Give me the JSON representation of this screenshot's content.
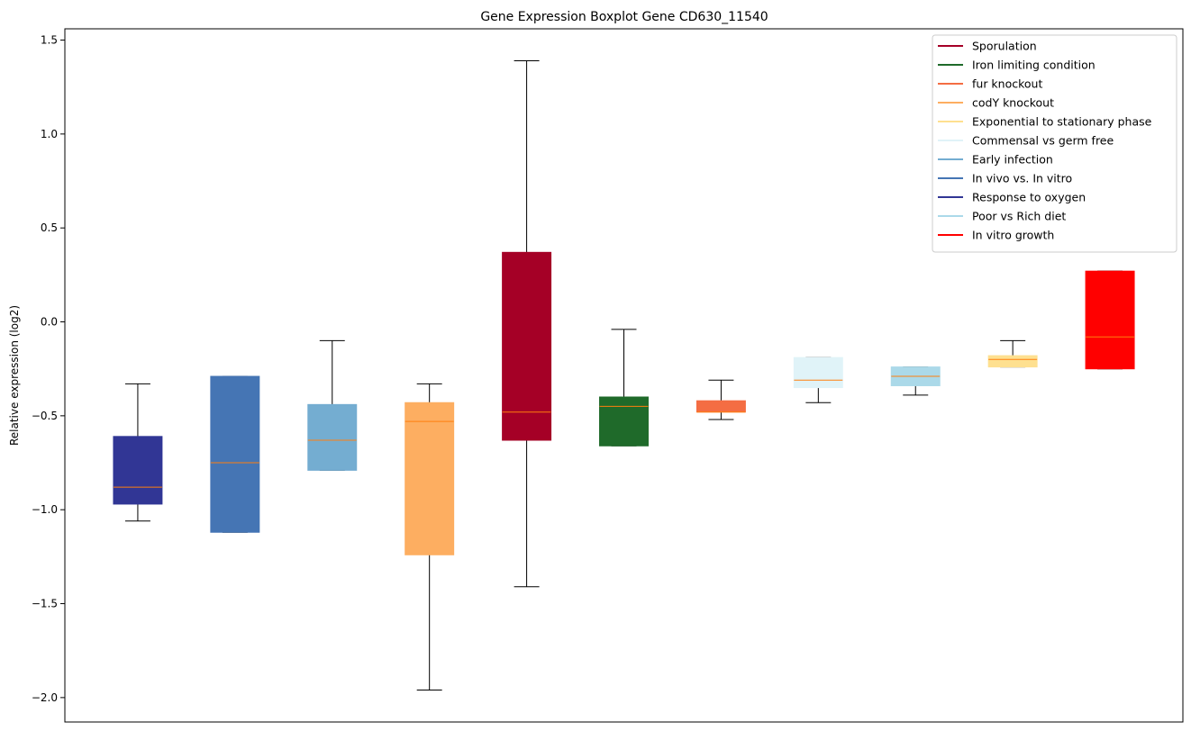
{
  "chart_data": {
    "type": "box",
    "title": "Gene Expression Boxplot Gene CD630_11540",
    "xlabel": "",
    "ylabel": "Relative expression (log2)",
    "ylim": [
      -2.13,
      1.56
    ],
    "yticks": [
      1.5,
      1.0,
      0.5,
      0.0,
      -0.5,
      -1.0,
      -1.5,
      -2.0
    ],
    "ytick_labels": [
      "1.5",
      "1.0",
      "0.5",
      "0.0",
      "−0.5",
      "−1.0",
      "−1.5",
      "−2.0"
    ],
    "grid": false,
    "legend_position": "top-right",
    "median_color": "#ff7f0e",
    "series": [
      {
        "name": "Response to oxygen",
        "color": "#313695",
        "whislo": -1.06,
        "q1": -0.97,
        "med": -0.88,
        "q3": -0.61,
        "whishi": -0.33
      },
      {
        "name": "In vivo vs. In vitro",
        "color": "#4575b4",
        "whislo": -1.12,
        "q1": -1.12,
        "med": -0.75,
        "q3": -0.29,
        "whishi": -0.29
      },
      {
        "name": "Early infection",
        "color": "#74add1",
        "whislo": -0.79,
        "q1": -0.79,
        "med": -0.63,
        "q3": -0.44,
        "whishi": -0.1
      },
      {
        "name": "codY knockout",
        "color": "#fdae61",
        "whislo": -1.96,
        "q1": -1.24,
        "med": -0.53,
        "q3": -0.43,
        "whishi": -0.33
      },
      {
        "name": "Sporulation",
        "color": "#a50026",
        "whislo": -1.41,
        "q1": -0.63,
        "med": -0.48,
        "q3": 0.37,
        "whishi": 1.39
      },
      {
        "name": "Iron limiting condition",
        "color": "#1f6a2a",
        "whislo": -0.66,
        "q1": -0.66,
        "med": -0.45,
        "q3": -0.4,
        "whishi": -0.04
      },
      {
        "name": "fur knockout",
        "color": "#f46d43",
        "whislo": -0.52,
        "q1": -0.48,
        "med": -0.48,
        "q3": -0.42,
        "whishi": -0.31
      },
      {
        "name": "Commensal vs germ free",
        "color": "#e0f3f8",
        "whislo": -0.43,
        "q1": -0.35,
        "med": -0.31,
        "q3": -0.19,
        "whishi": -0.19
      },
      {
        "name": "Poor vs Rich diet",
        "color": "#abd9e9",
        "whislo": -0.39,
        "q1": -0.34,
        "med": -0.29,
        "q3": -0.24,
        "whishi": -0.24
      },
      {
        "name": "Exponential to stationary phase",
        "color": "#fee090",
        "whislo": -0.24,
        "q1": -0.24,
        "med": -0.2,
        "q3": -0.18,
        "whishi": -0.1
      },
      {
        "name": "In vitro growth",
        "color": "#ff0000",
        "whislo": -0.25,
        "q1": -0.25,
        "med": -0.08,
        "q3": 0.27,
        "whishi": 0.27
      }
    ],
    "legend": [
      {
        "label": "Sporulation",
        "color": "#a50026"
      },
      {
        "label": "Iron limiting condition",
        "color": "#1f6a2a"
      },
      {
        "label": "fur knockout",
        "color": "#f46d43"
      },
      {
        "label": "codY knockout",
        "color": "#fdae61"
      },
      {
        "label": "Exponential to stationary phase",
        "color": "#fee090"
      },
      {
        "label": "Commensal vs germ free",
        "color": "#e0f3f8"
      },
      {
        "label": "Early infection",
        "color": "#74add1"
      },
      {
        "label": "In vivo vs. In vitro",
        "color": "#4575b4"
      },
      {
        "label": "Response to oxygen",
        "color": "#313695"
      },
      {
        "label": "Poor vs Rich diet",
        "color": "#abd9e9"
      },
      {
        "label": "In vitro growth",
        "color": "#ff0000"
      }
    ]
  }
}
